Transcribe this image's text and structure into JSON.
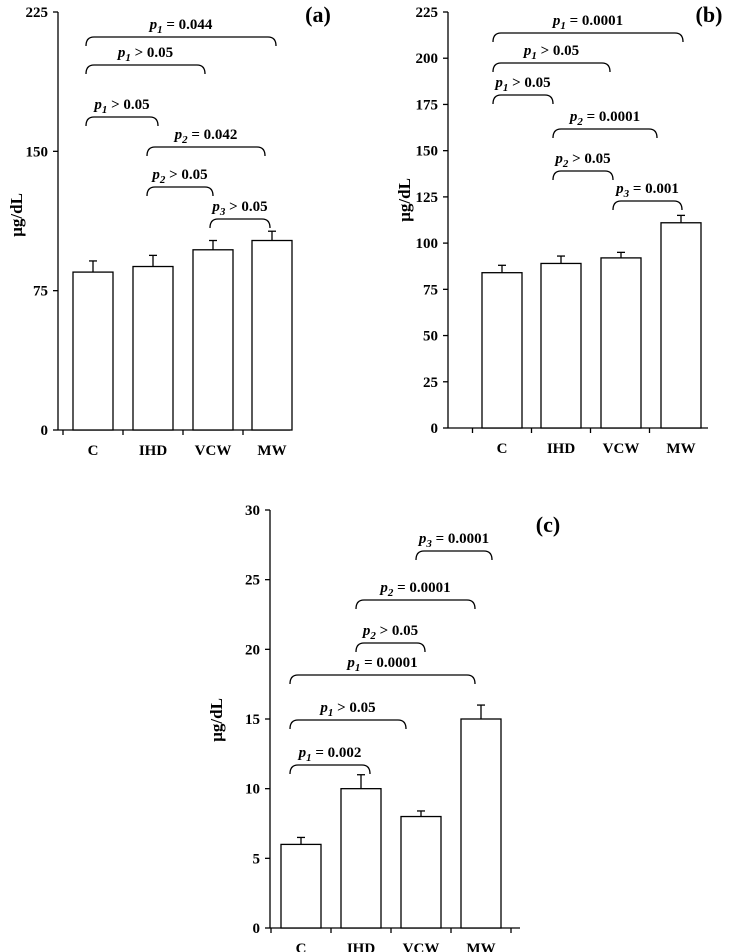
{
  "chart_data": [
    {
      "type": "bar",
      "panel_label": "(a)",
      "ylabel": "µg/dL",
      "categories": [
        "C",
        "IHD",
        "VCW",
        "MW"
      ],
      "values": [
        85,
        88,
        97,
        102
      ],
      "errors": [
        6,
        6,
        5,
        5
      ],
      "ylim": [
        0,
        225
      ],
      "yticks": [
        0,
        75,
        150,
        225
      ],
      "annotations": [
        {
          "p": "p",
          "sub": "1",
          "text": " = 0.044",
          "from": 0,
          "to": 3
        },
        {
          "p": "p",
          "sub": "1",
          "text": " > 0.05",
          "from": 0,
          "to": 2
        },
        {
          "p": "p",
          "sub": "1",
          "text": " > 0.05",
          "from": 0,
          "to": 1
        },
        {
          "p": "p",
          "sub": "2",
          "text": " = 0.042",
          "from": 1,
          "to": 3
        },
        {
          "p": "p",
          "sub": "2",
          "text": " > 0.05",
          "from": 1,
          "to": 2
        },
        {
          "p": "p",
          "sub": "3",
          "text": " > 0.05",
          "from": 2,
          "to": 3
        }
      ]
    },
    {
      "type": "bar",
      "panel_label": "(b)",
      "ylabel": "µg/dL",
      "categories": [
        "C",
        "IHD",
        "VCW",
        "MW"
      ],
      "values": [
        84,
        89,
        92,
        111
      ],
      "errors": [
        4,
        4,
        3,
        4
      ],
      "ylim": [
        0,
        225
      ],
      "yticks": [
        0,
        25,
        50,
        75,
        100,
        125,
        150,
        175,
        200,
        225
      ],
      "annotations": [
        {
          "p": "p",
          "sub": "1",
          "text": " = 0.0001",
          "from": 0,
          "to": 3
        },
        {
          "p": "p",
          "sub": "1",
          "text": " > 0.05",
          "from": 0,
          "to": 2
        },
        {
          "p": "p",
          "sub": "1",
          "text": " > 0.05",
          "from": 0,
          "to": 1
        },
        {
          "p": "p",
          "sub": "2",
          "text": " = 0.0001",
          "from": 1,
          "to": 3
        },
        {
          "p": "p",
          "sub": "2",
          "text": " > 0.05",
          "from": 1,
          "to": 2
        },
        {
          "p": "p",
          "sub": "3",
          "text": " = 0.001",
          "from": 2,
          "to": 3
        }
      ]
    },
    {
      "type": "bar",
      "panel_label": "(c)",
      "ylabel": "µg/dL",
      "categories": [
        "C",
        "IHD",
        "VCW",
        "MW"
      ],
      "values": [
        6,
        10,
        8,
        15
      ],
      "errors": [
        0.5,
        1,
        0.4,
        1
      ],
      "ylim": [
        0,
        30
      ],
      "yticks": [
        0,
        5,
        10,
        15,
        20,
        25,
        30
      ],
      "annotations": [
        {
          "p": "p",
          "sub": "3",
          "text": " = 0.0001",
          "from": 2,
          "to": 3
        },
        {
          "p": "p",
          "sub": "2",
          "text": " = 0.0001",
          "from": 1,
          "to": 3
        },
        {
          "p": "p",
          "sub": "2",
          "text": " > 0.05",
          "from": 1,
          "to": 2
        },
        {
          "p": "p",
          "sub": "1",
          "text": " = 0.0001",
          "from": 0,
          "to": 3
        },
        {
          "p": "p",
          "sub": "1",
          "text": " > 0.05",
          "from": 0,
          "to": 2
        },
        {
          "p": "p",
          "sub": "1",
          "text": " = 0.002",
          "from": 0,
          "to": 1
        }
      ]
    }
  ]
}
